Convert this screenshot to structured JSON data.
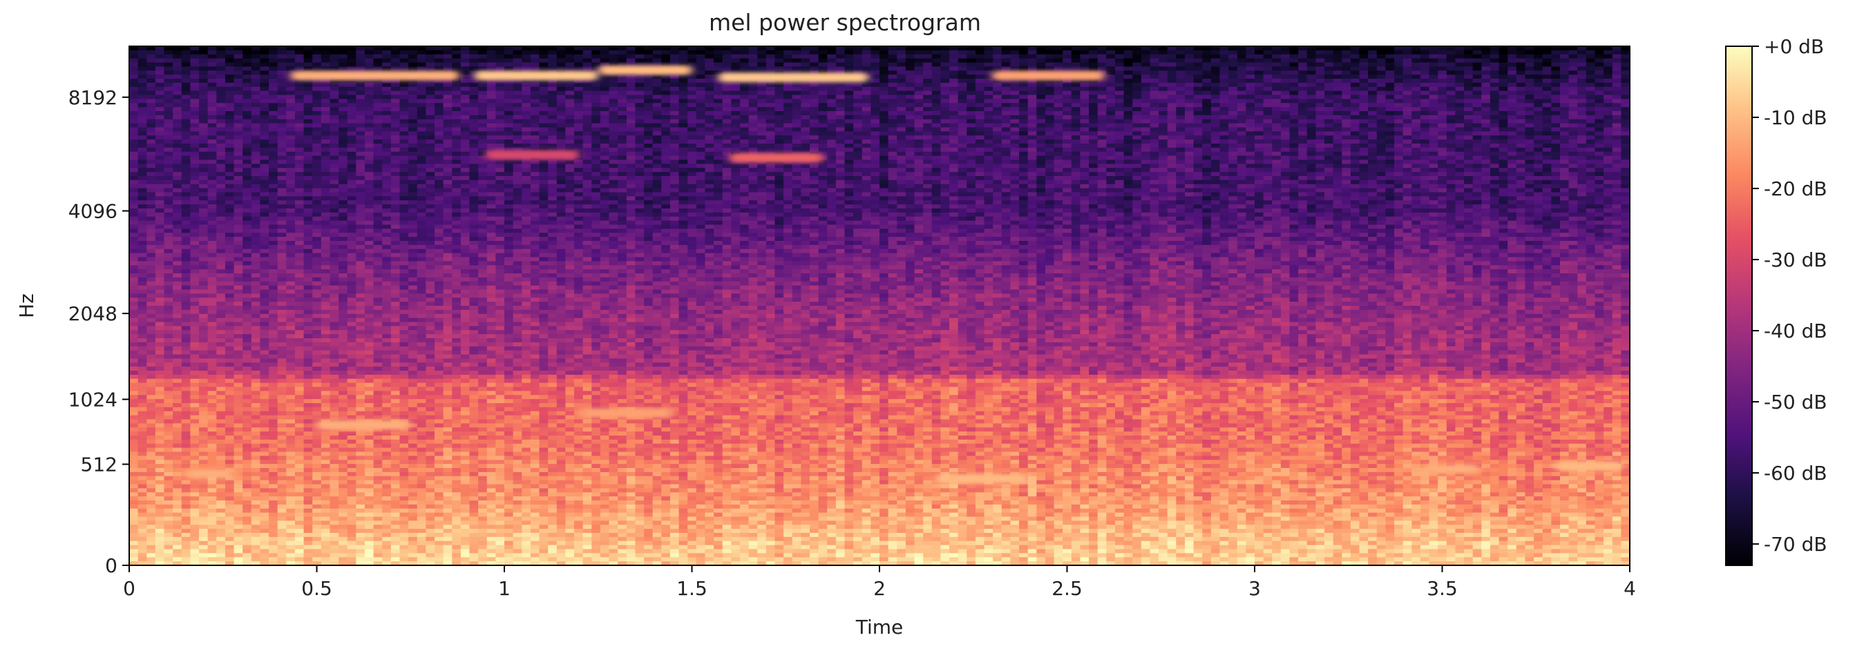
{
  "chart_data": {
    "type": "heatmap",
    "title": "mel power spectrogram",
    "xlabel": "Time",
    "ylabel": "Hz",
    "xlim": [
      0,
      4
    ],
    "x_ticks": [
      {
        "value": 0,
        "label": "0"
      },
      {
        "value": 0.5,
        "label": "0.5"
      },
      {
        "value": 1,
        "label": "1"
      },
      {
        "value": 1.5,
        "label": "1.5"
      },
      {
        "value": 2,
        "label": "2"
      },
      {
        "value": 2.5,
        "label": "2.5"
      },
      {
        "value": 3,
        "label": "3"
      },
      {
        "value": 3.5,
        "label": "3.5"
      },
      {
        "value": 4,
        "label": "4"
      }
    ],
    "y_scale": "mel",
    "ylim": [
      0,
      11025
    ],
    "y_ticks": [
      {
        "value": 0,
        "label": "0"
      },
      {
        "value": 512,
        "label": "512"
      },
      {
        "value": 1024,
        "label": "1024"
      },
      {
        "value": 2048,
        "label": "2048"
      },
      {
        "value": 4096,
        "label": "4096"
      },
      {
        "value": 8192,
        "label": "8192"
      }
    ],
    "colorbar": {
      "colormap": "magma",
      "vmin": -73,
      "vmax": 0,
      "ticks": [
        {
          "value": 0,
          "label": "+0 dB"
        },
        {
          "value": -10,
          "label": "-10 dB"
        },
        {
          "value": -20,
          "label": "-20 dB"
        },
        {
          "value": -30,
          "label": "-30 dB"
        },
        {
          "value": -40,
          "label": "-40 dB"
        },
        {
          "value": -50,
          "label": "-50 dB"
        },
        {
          "value": -60,
          "label": "-60 dB"
        },
        {
          "value": -70,
          "label": "-70 dB"
        }
      ]
    },
    "intensity_profile": {
      "description_hz_db": [
        [
          0,
          -6
        ],
        [
          300,
          -16
        ],
        [
          700,
          -22
        ],
        [
          1200,
          -24
        ],
        [
          1300,
          -38
        ],
        [
          2048,
          -42
        ],
        [
          3000,
          -48
        ],
        [
          4096,
          -56
        ],
        [
          8192,
          -58
        ],
        [
          10500,
          -66
        ],
        [
          11025,
          -73
        ]
      ]
    },
    "highlights": [
      {
        "t0": 0.43,
        "t1": 0.88,
        "hz": 9300,
        "db": -12
      },
      {
        "t0": 0.92,
        "t1": 1.25,
        "hz": 9300,
        "db": -8
      },
      {
        "t0": 1.25,
        "t1": 1.5,
        "hz": 9600,
        "db": -10
      },
      {
        "t0": 1.57,
        "t1": 1.97,
        "hz": 9200,
        "db": -8
      },
      {
        "t0": 2.3,
        "t1": 2.6,
        "hz": 9300,
        "db": -14
      },
      {
        "t0": 0.95,
        "t1": 1.2,
        "hz": 5800,
        "db": -30
      },
      {
        "t0": 1.6,
        "t1": 1.85,
        "hz": 5700,
        "db": -24
      },
      {
        "t0": 0.15,
        "t1": 0.28,
        "hz": 450,
        "db": -12
      },
      {
        "t0": 0.5,
        "t1": 0.75,
        "hz": 800,
        "db": -12
      },
      {
        "t0": 1.2,
        "t1": 1.45,
        "hz": 900,
        "db": -14
      },
      {
        "t0": 2.15,
        "t1": 2.4,
        "hz": 420,
        "db": -10
      },
      {
        "t0": 3.45,
        "t1": 3.6,
        "hz": 480,
        "db": -12
      },
      {
        "t0": 3.8,
        "t1": 3.98,
        "hz": 500,
        "db": -10
      }
    ]
  }
}
